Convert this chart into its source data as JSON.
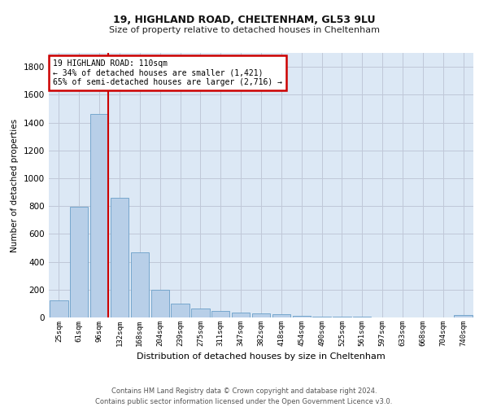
{
  "title1": "19, HIGHLAND ROAD, CHELTENHAM, GL53 9LU",
  "title2": "Size of property relative to detached houses in Cheltenham",
  "xlabel": "Distribution of detached houses by size in Cheltenham",
  "ylabel": "Number of detached properties",
  "footer1": "Contains HM Land Registry data © Crown copyright and database right 2024.",
  "footer2": "Contains public sector information licensed under the Open Government Licence v3.0.",
  "annotation_line1": "19 HIGHLAND ROAD: 110sqm",
  "annotation_line2": "← 34% of detached houses are smaller (1,421)",
  "annotation_line3": "65% of semi-detached houses are larger (2,716) →",
  "bar_color": "#b8cfe8",
  "bar_edge_color": "#6a9fc8",
  "red_line_color": "#cc0000",
  "annotation_box_edge": "#cc0000",
  "background_color": "#ffffff",
  "plot_bg_color": "#dce8f5",
  "grid_color": "#c0c8d8",
  "bin_labels": [
    "25sqm",
    "61sqm",
    "96sqm",
    "132sqm",
    "168sqm",
    "204sqm",
    "239sqm",
    "275sqm",
    "311sqm",
    "347sqm",
    "382sqm",
    "418sqm",
    "454sqm",
    "490sqm",
    "525sqm",
    "561sqm",
    "597sqm",
    "633sqm",
    "668sqm",
    "704sqm",
    "740sqm"
  ],
  "bar_values": [
    120,
    795,
    1460,
    860,
    470,
    200,
    100,
    65,
    45,
    38,
    30,
    22,
    10,
    5,
    5,
    3,
    2,
    2,
    1,
    1,
    15
  ],
  "red_line_x": 2.42,
  "ylim": [
    0,
    1900
  ],
  "yticks": [
    0,
    200,
    400,
    600,
    800,
    1000,
    1200,
    1400,
    1600,
    1800
  ]
}
